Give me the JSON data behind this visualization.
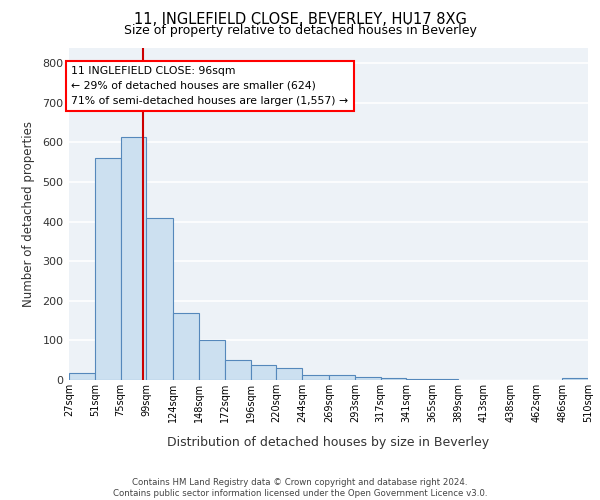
{
  "title_line1": "11, INGLEFIELD CLOSE, BEVERLEY, HU17 8XG",
  "title_line2": "Size of property relative to detached houses in Beverley",
  "xlabel": "Distribution of detached houses by size in Beverley",
  "ylabel": "Number of detached properties",
  "bin_labels": [
    "27sqm",
    "51sqm",
    "75sqm",
    "99sqm",
    "124sqm",
    "148sqm",
    "172sqm",
    "196sqm",
    "220sqm",
    "244sqm",
    "269sqm",
    "293sqm",
    "317sqm",
    "341sqm",
    "365sqm",
    "389sqm",
    "413sqm",
    "438sqm",
    "462sqm",
    "486sqm",
    "510sqm"
  ],
  "bar_heights": [
    17,
    560,
    615,
    410,
    170,
    100,
    50,
    38,
    30,
    12,
    12,
    7,
    4,
    3,
    2,
    1,
    1,
    0,
    0,
    5
  ],
  "bar_color": "#cce0f0",
  "bar_edge_color": "#5588bb",
  "annotation_line1": "11 INGLEFIELD CLOSE: 96sqm",
  "annotation_line2": "← 29% of detached houses are smaller (624)",
  "annotation_line3": "71% of semi-detached houses are larger (1,557) →",
  "vline_color": "#cc0000",
  "property_size_sqm": 96,
  "ylim_max": 840,
  "yticks": [
    0,
    100,
    200,
    300,
    400,
    500,
    600,
    700,
    800
  ],
  "footnote_line1": "Contains HM Land Registry data © Crown copyright and database right 2024.",
  "footnote_line2": "Contains public sector information licensed under the Open Government Licence v3.0.",
  "background_color": "#edf2f7",
  "grid_color": "#ffffff",
  "bin_edges": [
    27,
    51,
    75,
    99,
    124,
    148,
    172,
    196,
    220,
    244,
    269,
    293,
    317,
    341,
    365,
    389,
    413,
    438,
    462,
    486,
    510
  ]
}
